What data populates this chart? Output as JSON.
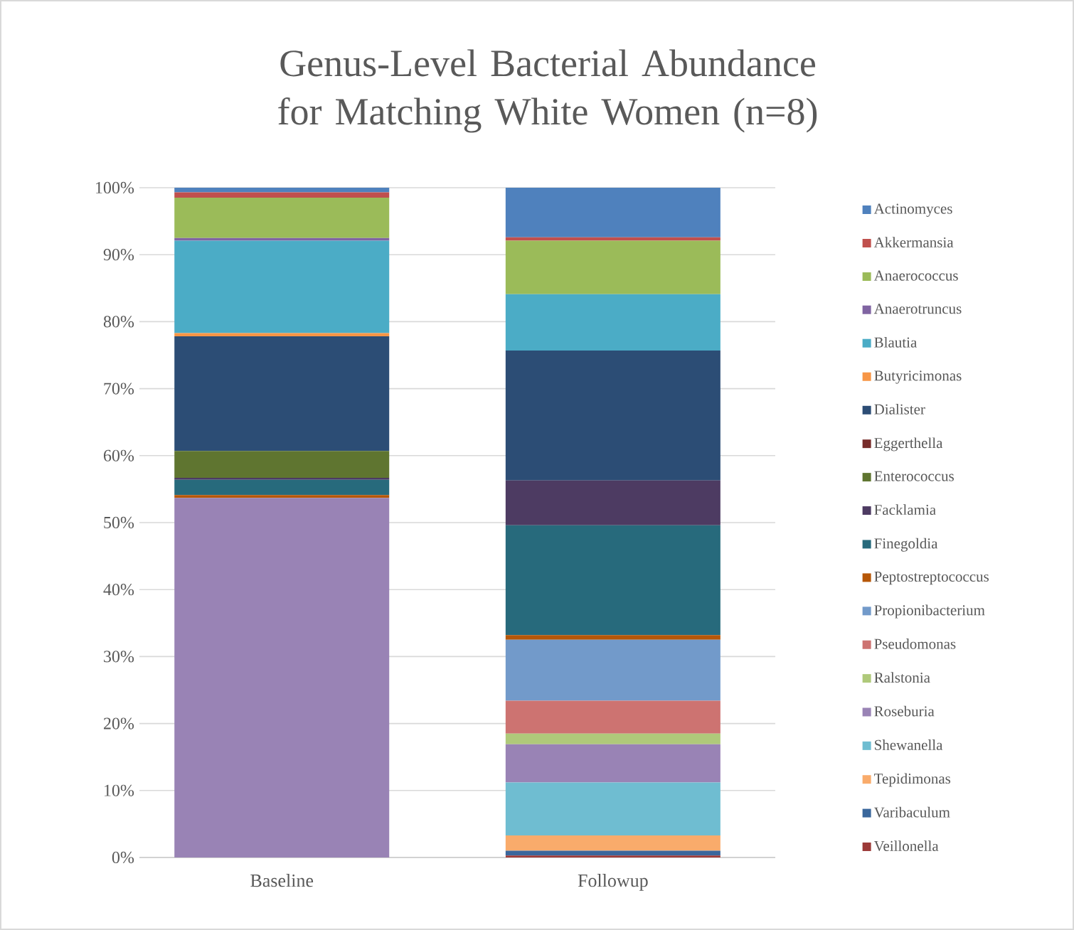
{
  "chart_data": {
    "type": "bar",
    "title": "Genus-Level Bacterial Abundance for Matching White Women (n=8)",
    "categories": [
      "Baseline",
      "Followup"
    ],
    "stacked": true,
    "grid": "y",
    "legend": "right",
    "ylim": [
      0,
      100
    ],
    "yticks": [
      {
        "value": 0,
        "label": "0%"
      },
      {
        "value": 10,
        "label": "10%"
      },
      {
        "value": 20,
        "label": "20%"
      },
      {
        "value": 30,
        "label": "30%"
      },
      {
        "value": 40,
        "label": "40%"
      },
      {
        "value": 50,
        "label": "50%"
      },
      {
        "value": 60,
        "label": "60%"
      },
      {
        "value": 70,
        "label": "70%"
      },
      {
        "value": 80,
        "label": "80%"
      },
      {
        "value": 90,
        "label": "90%"
      },
      {
        "value": 100,
        "label": "100%"
      }
    ],
    "series": [
      {
        "name": "Veillonella",
        "color": "#9c3a38",
        "values": [
          0,
          0.3
        ]
      },
      {
        "name": "Varibaculum",
        "color": "#3a679c",
        "values": [
          0,
          0.7
        ]
      },
      {
        "name": "Tepidimonas",
        "color": "#f9ab6b",
        "values": [
          0,
          2.3
        ]
      },
      {
        "name": "Shewanella",
        "color": "#6fbdd1",
        "values": [
          0,
          7.9
        ]
      },
      {
        "name": "Roseburia",
        "color": "#9983b5",
        "values": [
          53.7,
          5.7
        ]
      },
      {
        "name": "Ralstonia",
        "color": "#afc97a",
        "values": [
          0,
          1.6
        ]
      },
      {
        "name": "Pseudomonas",
        "color": "#cd7371",
        "values": [
          0,
          4.9
        ]
      },
      {
        "name": "Propionibacterium",
        "color": "#729aca",
        "values": [
          0,
          9.1
        ]
      },
      {
        "name": "Peptostreptococcus",
        "color": "#b65708",
        "values": [
          0.4,
          0.7
        ]
      },
      {
        "name": "Finegoldia",
        "color": "#276a7c",
        "values": [
          2.3,
          16.4
        ]
      },
      {
        "name": "Facklamia",
        "color": "#4d3b62",
        "values": [
          0.3,
          6.7
        ]
      },
      {
        "name": "Enterococcus",
        "color": "#5f7530",
        "values": [
          4,
          0
        ]
      },
      {
        "name": "Eggerthella",
        "color": "#772c2a",
        "values": [
          0,
          0
        ]
      },
      {
        "name": "Dialister",
        "color": "#2c4d75",
        "values": [
          17.1,
          19.4
        ]
      },
      {
        "name": "Butyricimonas",
        "color": "#f79646",
        "values": [
          0.5,
          0
        ]
      },
      {
        "name": "Blautia",
        "color": "#4bacc6",
        "values": [
          13.8,
          8.4
        ]
      },
      {
        "name": "Anaerotruncus",
        "color": "#8064a2",
        "values": [
          0.4,
          0
        ]
      },
      {
        "name": "Anaerococcus",
        "color": "#9bbb59",
        "values": [
          6,
          8
        ]
      },
      {
        "name": "Akkermansia",
        "color": "#c0504d",
        "values": [
          0.8,
          0.5
        ]
      },
      {
        "name": "Actinomyces",
        "color": "#4f81bd",
        "values": [
          0.7,
          7.4
        ]
      }
    ]
  }
}
